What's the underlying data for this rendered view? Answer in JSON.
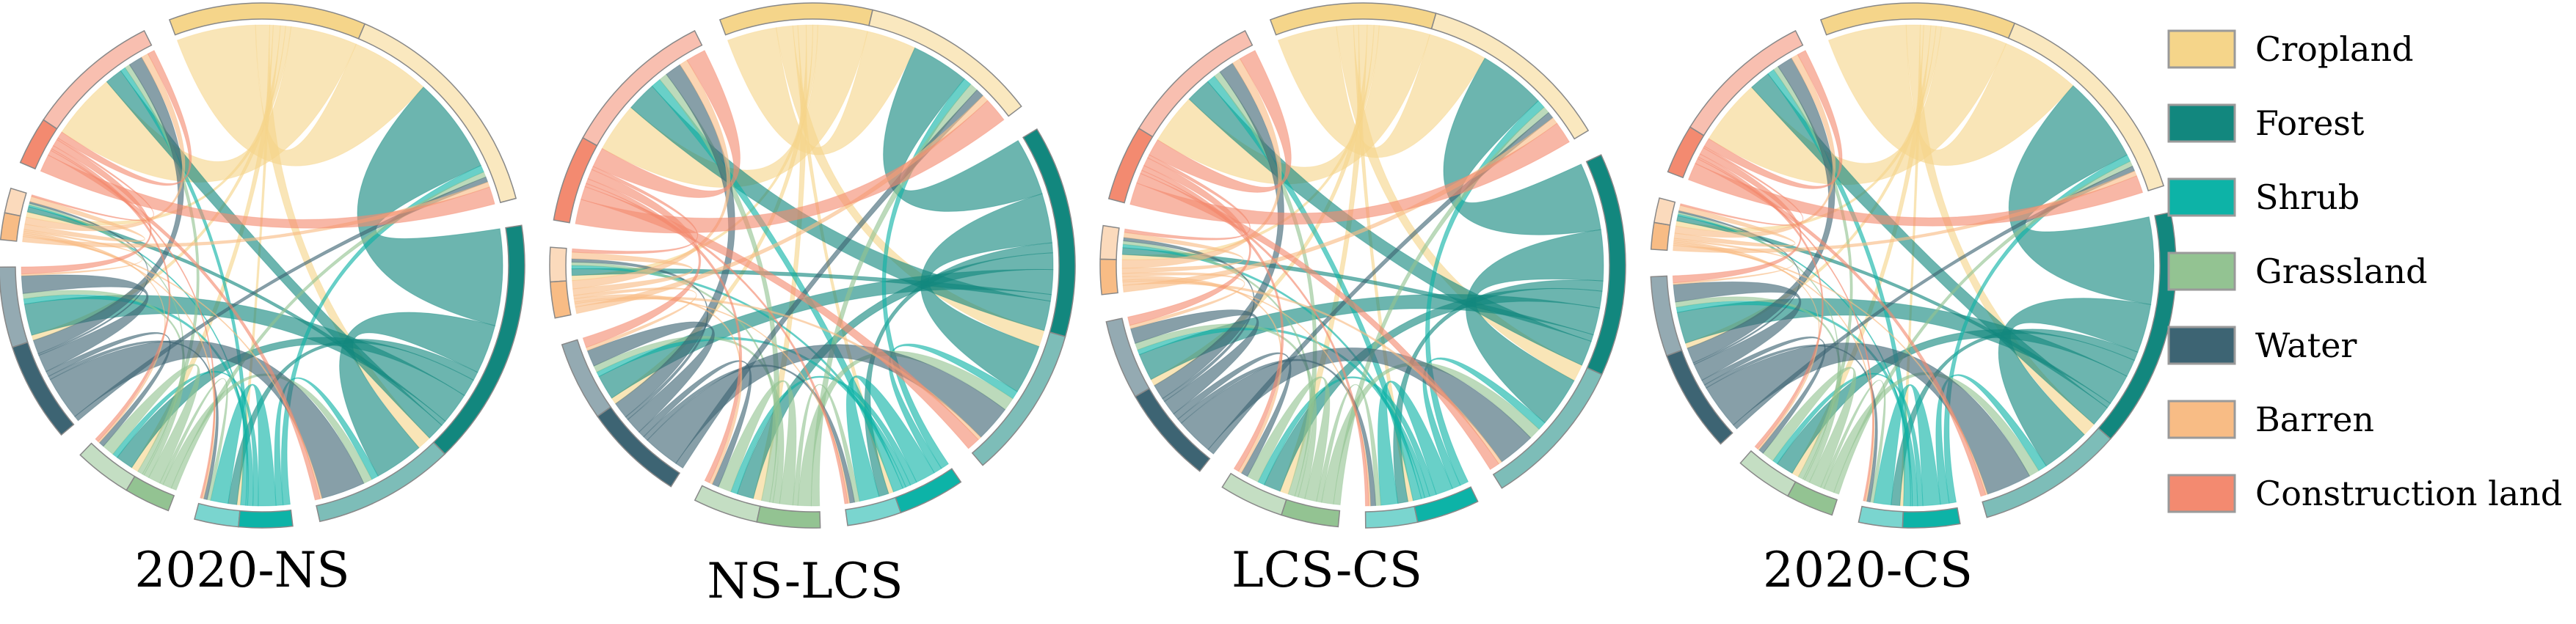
{
  "categories": [
    {
      "name": "Cropland",
      "color": "#F5D58A"
    },
    {
      "name": "Forest",
      "color": "#12877E"
    },
    {
      "name": "Shrub",
      "color": "#0DB3A7"
    },
    {
      "name": "Grassland",
      "color": "#93C392"
    },
    {
      "name": "Water",
      "color": "#3D6473"
    },
    {
      "name": "Barren",
      "color": "#F8BC85"
    },
    {
      "name": "Construction land",
      "color": "#F38A70"
    }
  ],
  "panels": [
    {
      "label": "2020-NS",
      "flows": [
        [
          0.45,
          0.08,
          0.02,
          0.04,
          0.03,
          0.03,
          0.38
        ],
        [
          0.55,
          0.28,
          0.05,
          0.1,
          0.18,
          0.03,
          0.1
        ],
        [
          0.04,
          0.04,
          0.1,
          0.03,
          0.03,
          0.01,
          0.03
        ],
        [
          0.03,
          0.05,
          0.02,
          0.07,
          0.03,
          0.01,
          0.03
        ],
        [
          0.03,
          0.25,
          0.02,
          0.03,
          0.1,
          0.01,
          0.08
        ],
        [
          0.03,
          0.01,
          0.01,
          0.01,
          0.01,
          0.03,
          0.04
        ],
        [
          0.1,
          0.03,
          0.01,
          0.02,
          0.04,
          0.01,
          0.04
        ]
      ]
    },
    {
      "label": "NS-LCS",
      "flows": [
        [
          0.3,
          0.1,
          0.03,
          0.05,
          0.04,
          0.03,
          0.3
        ],
        [
          0.35,
          0.3,
          0.06,
          0.1,
          0.15,
          0.04,
          0.18
        ],
        [
          0.05,
          0.05,
          0.12,
          0.04,
          0.03,
          0.02,
          0.06
        ],
        [
          0.05,
          0.08,
          0.03,
          0.08,
          0.04,
          0.02,
          0.05
        ],
        [
          0.05,
          0.22,
          0.03,
          0.04,
          0.1,
          0.02,
          0.1
        ],
        [
          0.04,
          0.02,
          0.01,
          0.02,
          0.02,
          0.04,
          0.05
        ],
        [
          0.15,
          0.08,
          0.02,
          0.03,
          0.06,
          0.02,
          0.12
        ]
      ]
    },
    {
      "label": "LCS-CS",
      "flows": [
        [
          0.35,
          0.1,
          0.03,
          0.05,
          0.04,
          0.03,
          0.3
        ],
        [
          0.4,
          0.3,
          0.06,
          0.1,
          0.16,
          0.04,
          0.15
        ],
        [
          0.05,
          0.05,
          0.1,
          0.04,
          0.03,
          0.02,
          0.05
        ],
        [
          0.04,
          0.07,
          0.03,
          0.07,
          0.04,
          0.02,
          0.04
        ],
        [
          0.04,
          0.22,
          0.03,
          0.04,
          0.09,
          0.02,
          0.09
        ],
        [
          0.04,
          0.02,
          0.01,
          0.02,
          0.02,
          0.03,
          0.05
        ],
        [
          0.13,
          0.06,
          0.02,
          0.03,
          0.05,
          0.02,
          0.1
        ]
      ]
    },
    {
      "label": "2020-CS",
      "flows": [
        [
          0.45,
          0.08,
          0.02,
          0.04,
          0.03,
          0.03,
          0.38
        ],
        [
          0.5,
          0.28,
          0.05,
          0.1,
          0.18,
          0.03,
          0.12
        ],
        [
          0.04,
          0.05,
          0.1,
          0.03,
          0.03,
          0.01,
          0.04
        ],
        [
          0.03,
          0.06,
          0.02,
          0.07,
          0.03,
          0.01,
          0.03
        ],
        [
          0.03,
          0.26,
          0.02,
          0.03,
          0.1,
          0.01,
          0.09
        ],
        [
          0.03,
          0.01,
          0.01,
          0.01,
          0.01,
          0.03,
          0.04
        ],
        [
          0.1,
          0.03,
          0.01,
          0.02,
          0.04,
          0.01,
          0.05
        ]
      ]
    }
  ]
}
